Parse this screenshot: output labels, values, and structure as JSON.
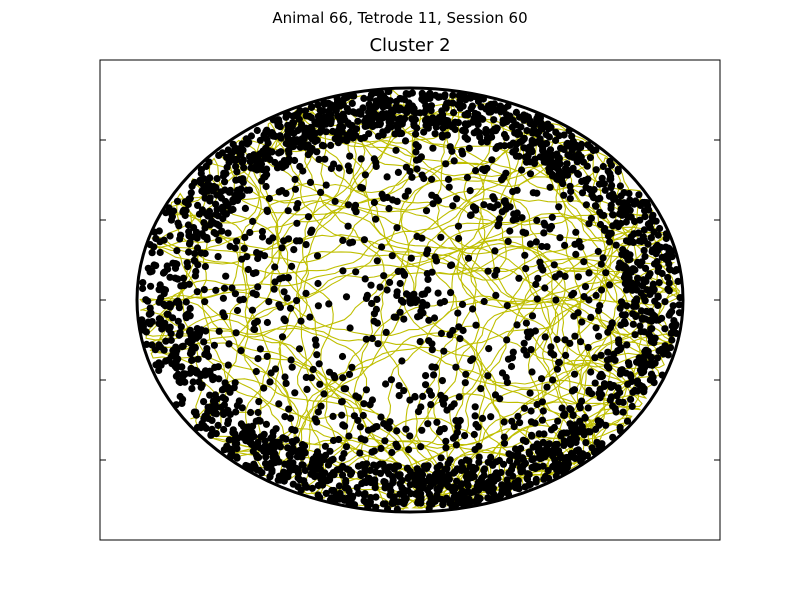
{
  "figure": {
    "suptitle": "Animal 66, Tetrode 11, Session 60"
  },
  "chart_data": {
    "type": "scatter",
    "title": "Cluster 2",
    "xlabel": "",
    "ylabel": "",
    "tick_labels_visible": false,
    "grid": false,
    "legend": "none",
    "series": [
      {
        "kind": "line",
        "description": "trajectory path",
        "color": "#bfbf00",
        "note": "dense random-walk path filling a circular arena"
      },
      {
        "kind": "scatter",
        "description": "spike positions",
        "color": "#000000",
        "note": "points concentrated along arena rim, sparse in center"
      }
    ],
    "arena": {
      "shape": "circle"
    }
  },
  "colors": {
    "path": "#bfbf00",
    "spikes": "#000000",
    "axes": "#000000",
    "background": "#ffffff"
  }
}
